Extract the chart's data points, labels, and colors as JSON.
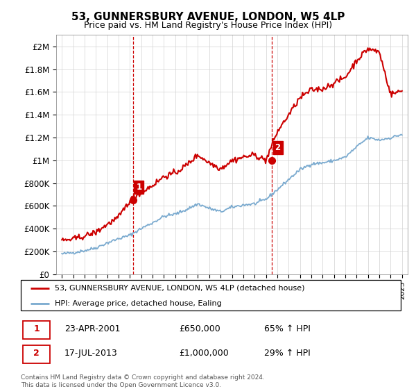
{
  "title": "53, GUNNERSBURY AVENUE, LONDON, W5 4LP",
  "subtitle": "Price paid vs. HM Land Registry's House Price Index (HPI)",
  "ylabel_ticks": [
    "£0",
    "£200K",
    "£400K",
    "£600K",
    "£800K",
    "£1M",
    "£1.2M",
    "£1.4M",
    "£1.6M",
    "£1.8M",
    "£2M"
  ],
  "ytick_values": [
    0,
    200000,
    400000,
    600000,
    800000,
    1000000,
    1200000,
    1400000,
    1600000,
    1800000,
    2000000
  ],
  "ylim": [
    0,
    2100000
  ],
  "xlim_start": 1994.5,
  "xlim_end": 2025.5,
  "sale1_date": 2001.3,
  "sale1_price": 650000,
  "sale1_label": "1",
  "sale2_date": 2013.54,
  "sale2_price": 1000000,
  "sale2_label": "2",
  "house_color": "#cc0000",
  "hpi_color": "#7aaacf",
  "vline_color": "#cc0000",
  "legend_label_house": "53, GUNNERSBURY AVENUE, LONDON, W5 4LP (detached house)",
  "legend_label_hpi": "HPI: Average price, detached house, Ealing",
  "footer": "Contains HM Land Registry data © Crown copyright and database right 2024.\nThis data is licensed under the Open Government Licence v3.0.",
  "table_row1": [
    "1",
    "23-APR-2001",
    "£650,000",
    "65% ↑ HPI"
  ],
  "table_row2": [
    "2",
    "17-JUL-2013",
    "£1,000,000",
    "29% ↑ HPI"
  ],
  "years_hpi": [
    1995,
    1996,
    1997,
    1998,
    1999,
    2000,
    2001,
    2002,
    2003,
    2004,
    2005,
    2006,
    2007,
    2008,
    2009,
    2010,
    2011,
    2012,
    2013,
    2014,
    2015,
    2016,
    2017,
    2018,
    2019,
    2020,
    2021,
    2022,
    2023,
    2024,
    2025
  ],
  "hpi_values": [
    178000,
    190000,
    208000,
    232000,
    275000,
    312000,
    342000,
    402000,
    452000,
    508000,
    528000,
    568000,
    618000,
    578000,
    548000,
    588000,
    608000,
    618000,
    658000,
    742000,
    832000,
    918000,
    968000,
    978000,
    998000,
    1028000,
    1118000,
    1198000,
    1178000,
    1198000,
    1228000
  ],
  "years_house": [
    1995,
    1996,
    1997,
    1998,
    1999,
    2000,
    2001,
    2002,
    2003,
    2004,
    2005,
    2006,
    2007,
    2008,
    2009,
    2010,
    2011,
    2012,
    2013,
    2014,
    2015,
    2016,
    2017,
    2018,
    2019,
    2020,
    2021,
    2022,
    2023,
    2024,
    2025
  ],
  "house_values": [
    295000,
    308000,
    335000,
    368000,
    438000,
    498000,
    650000,
    720000,
    780000,
    858000,
    888000,
    958000,
    1048000,
    978000,
    928000,
    998000,
    1028000,
    1048000,
    1000000,
    1250000,
    1398000,
    1548000,
    1618000,
    1628000,
    1678000,
    1728000,
    1878000,
    1980000,
    1950000,
    1580000,
    1610000
  ]
}
